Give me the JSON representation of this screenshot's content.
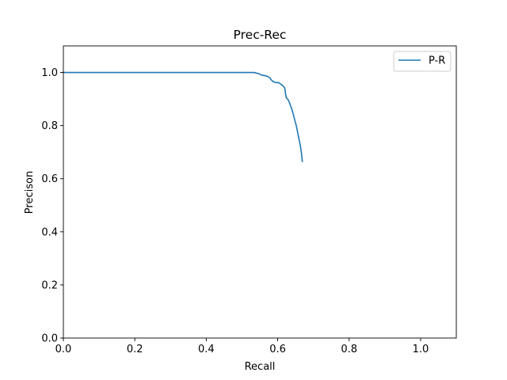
{
  "chart_data": {
    "type": "line",
    "title": "Prec-Rec",
    "xlabel": "Recall",
    "ylabel": "Precison",
    "xlim": [
      0.0,
      1.1
    ],
    "ylim": [
      0.0,
      1.1
    ],
    "x_ticks": [
      0.0,
      0.2,
      0.4,
      0.6,
      0.8,
      1.0
    ],
    "x_tick_labels": [
      "0.0",
      "0.2",
      "0.4",
      "0.6",
      "0.8",
      "1.0"
    ],
    "y_ticks": [
      0.0,
      0.2,
      0.4,
      0.6,
      0.8,
      1.0
    ],
    "y_tick_labels": [
      "0.0",
      "0.2",
      "0.4",
      "0.6",
      "0.8",
      "1.0"
    ],
    "grid": false,
    "legend": {
      "position": "top-right",
      "entries": [
        "P-R"
      ]
    },
    "series": [
      {
        "name": "P-R",
        "color": "#1f77b4",
        "x": [
          0.0,
          0.1,
          0.2,
          0.3,
          0.4,
          0.5,
          0.533,
          0.54,
          0.548,
          0.555,
          0.565,
          0.572,
          0.578,
          0.582,
          0.588,
          0.594,
          0.602,
          0.61,
          0.616,
          0.62,
          0.622,
          0.624,
          0.626,
          0.628,
          0.632,
          0.636,
          0.64,
          0.644,
          0.648,
          0.652,
          0.655,
          0.658,
          0.661,
          0.664,
          0.667,
          0.669
        ],
        "y": [
          1.0,
          1.0,
          1.0,
          1.0,
          1.0,
          1.0,
          1.0,
          0.998,
          0.995,
          0.99,
          0.988,
          0.985,
          0.98,
          0.972,
          0.965,
          0.962,
          0.962,
          0.955,
          0.948,
          0.94,
          0.92,
          0.905,
          0.902,
          0.9,
          0.89,
          0.875,
          0.86,
          0.84,
          0.82,
          0.8,
          0.78,
          0.76,
          0.74,
          0.72,
          0.69,
          0.665
        ]
      }
    ]
  }
}
